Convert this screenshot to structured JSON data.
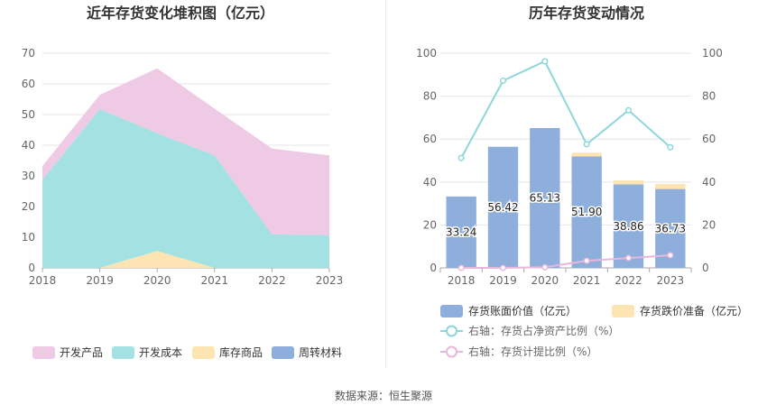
{
  "source_label": "数据来源：恒生聚源",
  "colors": {
    "kaifa_chanpin": "#efcae4",
    "kaifa_chengben": "#a3e1e3",
    "kucun_shangpin": "#fde4b3",
    "zhouzhuan_cailiao": "#8eaedb",
    "bar_main": "#8eaedb",
    "bar_top": "#fde4b3",
    "line_ratio": "#8dd7dc",
    "line_provision": "#e7b7dc"
  },
  "chart_data": [
    {
      "type": "area",
      "title": "近年存货变化堆积图（亿元）",
      "x": [
        "2018",
        "2019",
        "2020",
        "2021",
        "2022",
        "2023"
      ],
      "ylim": [
        0,
        70
      ],
      "yticks": [
        "0",
        "10",
        "20",
        "30",
        "40",
        "50",
        "60",
        "70"
      ],
      "stacked": true,
      "legend_position": "bottom",
      "series": [
        {
          "name": "开发产品",
          "values": [
            4.5,
            4.6,
            21.2,
            15.2,
            28.0,
            26.0
          ]
        },
        {
          "name": "开发成本",
          "values": [
            28.7,
            51.8,
            38.4,
            36.7,
            10.9,
            10.7
          ]
        },
        {
          "name": "库存商品",
          "values": [
            0.0,
            0.0,
            5.5,
            0.0,
            0.0,
            0.0
          ]
        },
        {
          "name": "周转材料",
          "values": [
            0.0,
            0.0,
            0.0,
            0.0,
            0.0,
            0.0
          ]
        }
      ]
    },
    {
      "type": "bar",
      "title": "历年存货变动情况",
      "categories": [
        "2018",
        "2019",
        "2020",
        "2021",
        "2022",
        "2023"
      ],
      "ylim": [
        0,
        100
      ],
      "yticks": [
        "0",
        "20",
        "40",
        "60",
        "80",
        "100"
      ],
      "y2lim": [
        0,
        100
      ],
      "y2ticks": [
        "0",
        "20",
        "40",
        "60",
        "80",
        "100"
      ],
      "legend_position": "bottom",
      "series": [
        {
          "name": "存货账面价值（亿元）",
          "type": "bar",
          "values": [
            33.24,
            56.42,
            65.13,
            51.9,
            38.86,
            36.73
          ],
          "labels": [
            "33.24",
            "56.42",
            "65.13",
            "51.90",
            "38.86",
            "36.73"
          ]
        },
        {
          "name": "存货跌价准备（亿元）",
          "type": "bar",
          "values": [
            0,
            0,
            0,
            1.8,
            1.9,
            2.4
          ]
        },
        {
          "name": "右轴：存货占净资产比例（%）",
          "type": "line",
          "axis": "right",
          "values": [
            51.2,
            87.2,
            96.2,
            57.6,
            73.4,
            56.2
          ]
        },
        {
          "name": "右轴：存货计提比例（%）",
          "type": "line",
          "axis": "right",
          "values": [
            0,
            0,
            0.3,
            3.3,
            4.6,
            5.9
          ]
        }
      ]
    }
  ]
}
